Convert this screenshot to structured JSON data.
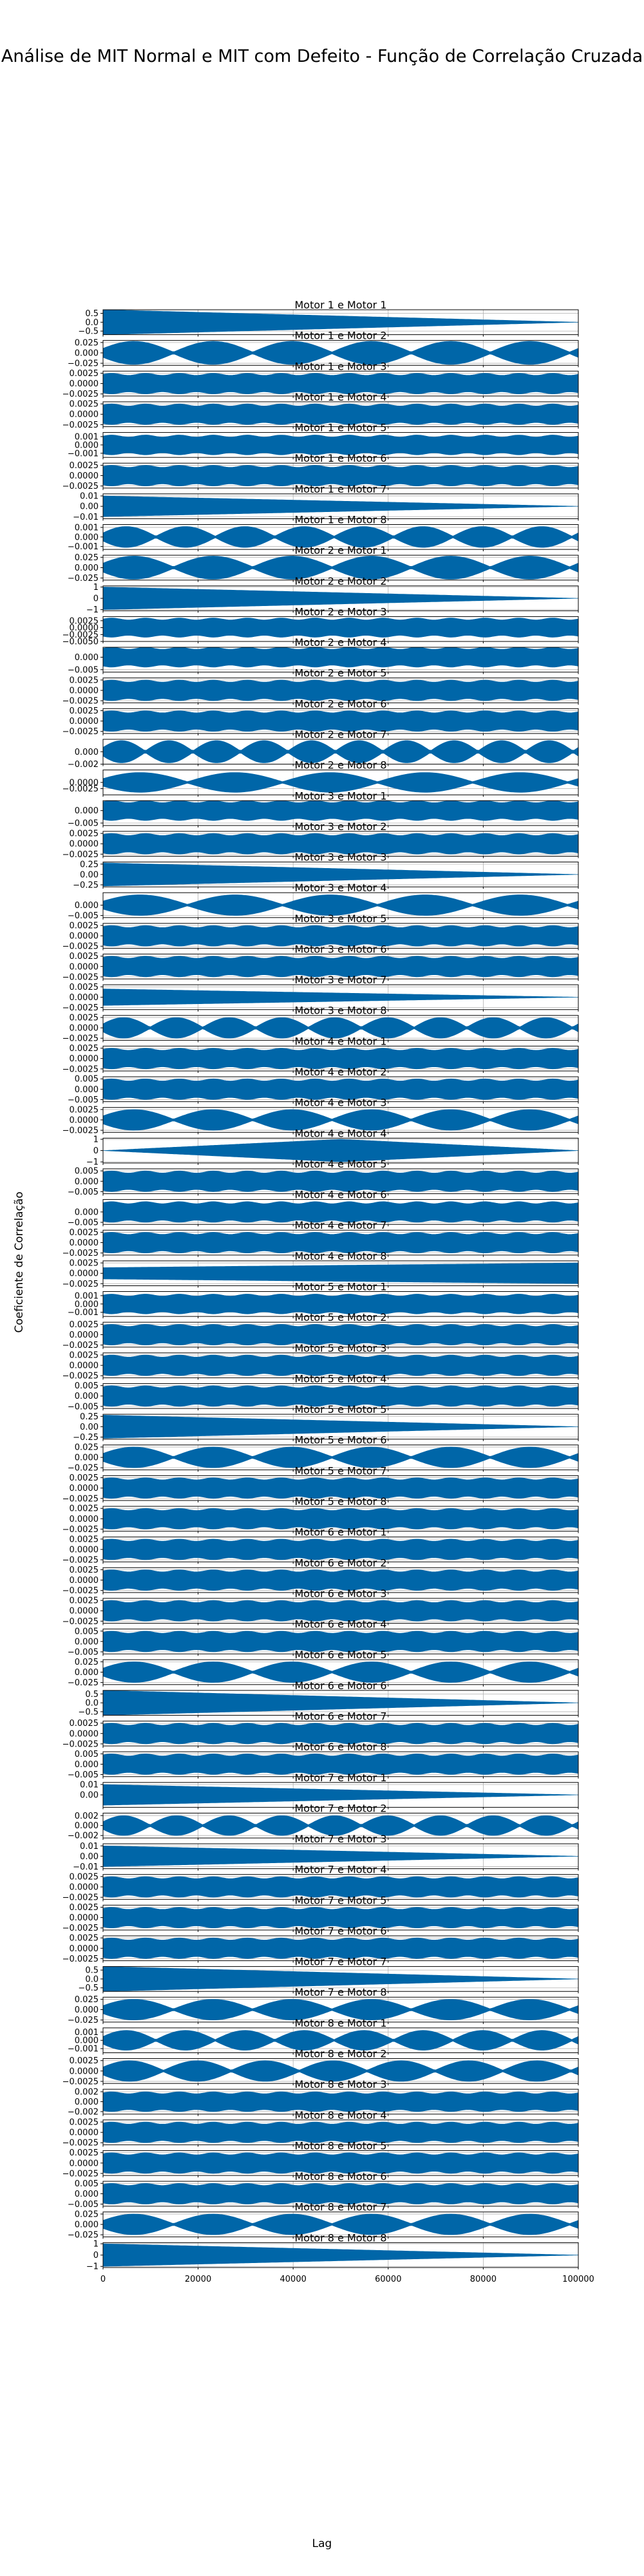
{
  "figure": {
    "title": "Análise de MIT Normal e MIT com Defeito - Função de Correlação Cruzada",
    "xlabel": "Lag",
    "ylabel": "Coeficiente de Correlação"
  },
  "chart_data": {
    "type": "line",
    "series_color": "#0066a8",
    "grid": true,
    "shared_x": true,
    "xlim": [
      0,
      100000
    ],
    "x_ticks": [
      "0",
      "20000",
      "40000",
      "60000",
      "80000",
      "100000"
    ],
    "panels": [
      {
        "title": "Motor 1 e Motor 1",
        "ylim": [
          -0.7,
          0.7
        ],
        "yticks": [
          "0.5",
          "0.0",
          "−0.5"
        ],
        "peak": 0.7,
        "envelope": "decay",
        "beats": 0
      },
      {
        "title": "Motor 1 e Motor 2",
        "ylim": [
          -0.03,
          0.03
        ],
        "yticks": [
          "0.025",
          "0.000",
          "−0.025"
        ],
        "peak": 0.028,
        "envelope": "beats",
        "beats": 6
      },
      {
        "title": "Motor 1 e Motor 3",
        "ylim": [
          -0.003,
          0.003
        ],
        "yticks": [
          "0.0025",
          "0.0000",
          "−0.0025"
        ],
        "peak": 0.0025,
        "envelope": "flat",
        "beats": 0
      },
      {
        "title": "Motor 1 e Motor 4",
        "ylim": [
          -0.003,
          0.003
        ],
        "yticks": [
          "0.0025",
          "0.0000",
          "−0.0025"
        ],
        "peak": 0.0025,
        "envelope": "flat",
        "beats": 0
      },
      {
        "title": "Motor 1 e Motor 5",
        "ylim": [
          -0.0015,
          0.0015
        ],
        "yticks": [
          "0.001",
          "0.000",
          "−0.001"
        ],
        "peak": 0.0012,
        "envelope": "flat",
        "beats": 0
      },
      {
        "title": "Motor 1 e Motor 6",
        "ylim": [
          -0.003,
          0.003
        ],
        "yticks": [
          "0.0025",
          "0.0000",
          "−0.0025"
        ],
        "peak": 0.0025,
        "envelope": "flat",
        "beats": 0
      },
      {
        "title": "Motor 1 e Motor 7",
        "ylim": [
          -0.012,
          0.012
        ],
        "yticks": [
          "0.01",
          "0.00",
          "−0.01"
        ],
        "peak": 0.01,
        "envelope": "decay",
        "beats": 0
      },
      {
        "title": "Motor 1 e Motor 8",
        "ylim": [
          -0.0013,
          0.0013
        ],
        "yticks": [
          "0.001",
          "0.000",
          "−0.001"
        ],
        "peak": 0.0011,
        "envelope": "beats",
        "beats": 8
      },
      {
        "title": "Motor 2 e Motor 1",
        "ylim": [
          -0.03,
          0.03
        ],
        "yticks": [
          "0.025",
          "0.000",
          "−0.025"
        ],
        "peak": 0.028,
        "envelope": "beats",
        "beats": 6
      },
      {
        "title": "Motor 2 e Motor 2",
        "ylim": [
          -1.1,
          1.1
        ],
        "yticks": [
          "1",
          "0",
          "−1"
        ],
        "peak": 1.0,
        "envelope": "decay",
        "beats": 0
      },
      {
        "title": "Motor 2 e Motor 3",
        "ylim": [
          -0.005,
          0.004
        ],
        "yticks": [
          "0.0025",
          "0.0000",
          "−0.0025",
          "−0.0050"
        ],
        "peak": 0.0035,
        "envelope": "flat",
        "beats": 0
      },
      {
        "title": "Motor 2 e Motor 4",
        "ylim": [
          -0.006,
          0.004
        ],
        "yticks": [
          "0.000",
          "−0.005"
        ],
        "peak": 0.004,
        "envelope": "flat",
        "beats": 0
      },
      {
        "title": "Motor 2 e Motor 5",
        "ylim": [
          -0.003,
          0.003
        ],
        "yticks": [
          "0.0025",
          "0.0000",
          "−0.0025"
        ],
        "peak": 0.0025,
        "envelope": "flat",
        "beats": 0
      },
      {
        "title": "Motor 2 e Motor 6",
        "ylim": [
          -0.003,
          0.003
        ],
        "yticks": [
          "0.0025",
          "0.0000",
          "−0.0025"
        ],
        "peak": 0.0025,
        "envelope": "flat",
        "beats": 0
      },
      {
        "title": "Motor 2 e Motor 7",
        "ylim": [
          -0.002,
          0.002
        ],
        "yticks": [
          "0.000",
          "−0.002"
        ],
        "peak": 0.0018,
        "envelope": "beats",
        "beats": 10
      },
      {
        "title": "Motor 2 e Motor 8",
        "ylim": [
          -0.005,
          0.005
        ],
        "yticks": [
          "0.0000",
          "−0.0025"
        ],
        "peak": 0.004,
        "envelope": "beats",
        "beats": 5
      },
      {
        "title": "Motor 3 e Motor 1",
        "ylim": [
          -0.006,
          0.004
        ],
        "yticks": [
          "0.000",
          "−0.005"
        ],
        "peak": 0.004,
        "envelope": "flat",
        "beats": 0
      },
      {
        "title": "Motor 3 e Motor 2",
        "ylim": [
          -0.003,
          0.003
        ],
        "yticks": [
          "0.0025",
          "0.0000",
          "−0.0025"
        ],
        "peak": 0.0025,
        "envelope": "flat",
        "beats": 0
      },
      {
        "title": "Motor 3 e Motor 3",
        "ylim": [
          -0.3,
          0.3
        ],
        "yticks": [
          "0.25",
          "0.00",
          "−0.25"
        ],
        "peak": 0.28,
        "envelope": "decay",
        "beats": 0
      },
      {
        "title": "Motor 3 e Motor 4",
        "ylim": [
          -0.006,
          0.006
        ],
        "yticks": [
          "0.000",
          "−0.005"
        ],
        "peak": 0.005,
        "envelope": "beats",
        "beats": 5
      },
      {
        "title": "Motor 3 e Motor 5",
        "ylim": [
          -0.003,
          0.003
        ],
        "yticks": [
          "0.0025",
          "0.0000",
          "−0.0025"
        ],
        "peak": 0.0025,
        "envelope": "flat",
        "beats": 0
      },
      {
        "title": "Motor 3 e Motor 6",
        "ylim": [
          -0.003,
          0.003
        ],
        "yticks": [
          "0.0025",
          "0.0000",
          "−0.0025"
        ],
        "peak": 0.0025,
        "envelope": "flat",
        "beats": 0
      },
      {
        "title": "Motor 3 e Motor 7",
        "ylim": [
          -0.003,
          0.003
        ],
        "yticks": [
          "0.0025",
          "0.0000",
          "−0.0025"
        ],
        "peak": 0.002,
        "envelope": "decay",
        "beats": 0
      },
      {
        "title": "Motor 3 e Motor 8",
        "ylim": [
          -0.003,
          0.003
        ],
        "yticks": [
          "0.0025",
          "0.0000",
          "−0.0025"
        ],
        "peak": 0.0025,
        "envelope": "beats",
        "beats": 9
      },
      {
        "title": "Motor 4 e Motor 1",
        "ylim": [
          -0.003,
          0.003
        ],
        "yticks": [
          "0.0025",
          "0.0000",
          "−0.0025"
        ],
        "peak": 0.0025,
        "envelope": "flat",
        "beats": 0
      },
      {
        "title": "Motor 4 e Motor 2",
        "ylim": [
          -0.006,
          0.006
        ],
        "yticks": [
          "0.005",
          "0.000",
          "−0.005"
        ],
        "peak": 0.005,
        "envelope": "flat",
        "beats": 0
      },
      {
        "title": "Motor 4 e Motor 3",
        "ylim": [
          -0.003,
          0.003
        ],
        "yticks": [
          "0.0025",
          "0.0000",
          "−0.0025"
        ],
        "peak": 0.0025,
        "envelope": "beats",
        "beats": 6
      },
      {
        "title": "Motor 4 e Motor 4",
        "ylim": [
          -1.1,
          1.1
        ],
        "yticks": [
          "1",
          "0",
          "−1"
        ],
        "peak": 1.0,
        "envelope": "diamond",
        "beats": 0
      },
      {
        "title": "Motor 4 e Motor 5",
        "ylim": [
          -0.006,
          0.006
        ],
        "yticks": [
          "0.005",
          "0.000",
          "−0.005"
        ],
        "peak": 0.005,
        "envelope": "flat",
        "beats": 0
      },
      {
        "title": "Motor 4 e Motor 6",
        "ylim": [
          -0.006,
          0.006
        ],
        "yticks": [
          "0.000",
          "−0.005"
        ],
        "peak": 0.005,
        "envelope": "flat",
        "beats": 0
      },
      {
        "title": "Motor 4 e Motor 7",
        "ylim": [
          -0.003,
          0.003
        ],
        "yticks": [
          "0.0025",
          "0.0000",
          "−0.0025"
        ],
        "peak": 0.0025,
        "envelope": "flat",
        "beats": 0
      },
      {
        "title": "Motor 4 e Motor 8",
        "ylim": [
          -0.003,
          0.003
        ],
        "yticks": [
          "0.0025",
          "0.0000",
          "−0.0025"
        ],
        "peak": 0.0025,
        "envelope": "grow",
        "beats": 0
      },
      {
        "title": "Motor 5 e Motor 1",
        "ylim": [
          -0.0015,
          0.0015
        ],
        "yticks": [
          "0.001",
          "0.000",
          "−0.001"
        ],
        "peak": 0.0012,
        "envelope": "flat",
        "beats": 0
      },
      {
        "title": "Motor 5 e Motor 2",
        "ylim": [
          -0.003,
          0.003
        ],
        "yticks": [
          "0.0025",
          "0.0000",
          "−0.0025"
        ],
        "peak": 0.0025,
        "envelope": "flat",
        "beats": 0
      },
      {
        "title": "Motor 5 e Motor 3",
        "ylim": [
          -0.003,
          0.003
        ],
        "yticks": [
          "0.0025",
          "0.0000",
          "−0.0025"
        ],
        "peak": 0.0025,
        "envelope": "flat",
        "beats": 0
      },
      {
        "title": "Motor 5 e Motor 4",
        "ylim": [
          -0.006,
          0.006
        ],
        "yticks": [
          "0.005",
          "0.000",
          "−0.005"
        ],
        "peak": 0.005,
        "envelope": "flat",
        "beats": 0
      },
      {
        "title": "Motor 5 e Motor 5",
        "ylim": [
          -0.3,
          0.3
        ],
        "yticks": [
          "0.25",
          "0.00",
          "−0.25"
        ],
        "peak": 0.28,
        "envelope": "decay",
        "beats": 0
      },
      {
        "title": "Motor 5 e Motor 6",
        "ylim": [
          -0.03,
          0.03
        ],
        "yticks": [
          "0.025",
          "0.000",
          "−0.025"
        ],
        "peak": 0.025,
        "envelope": "beats",
        "beats": 6
      },
      {
        "title": "Motor 5 e Motor 7",
        "ylim": [
          -0.003,
          0.003
        ],
        "yticks": [
          "0.0025",
          "0.0000",
          "−0.0025"
        ],
        "peak": 0.0025,
        "envelope": "flat",
        "beats": 0
      },
      {
        "title": "Motor 5 e Motor 8",
        "ylim": [
          -0.003,
          0.003
        ],
        "yticks": [
          "0.0025",
          "0.0000",
          "−0.0025"
        ],
        "peak": 0.0025,
        "envelope": "flat",
        "beats": 0
      },
      {
        "title": "Motor 6 e Motor 1",
        "ylim": [
          -0.003,
          0.003
        ],
        "yticks": [
          "0.0025",
          "0.0000",
          "−0.0025"
        ],
        "peak": 0.0025,
        "envelope": "flat",
        "beats": 0
      },
      {
        "title": "Motor 6 e Motor 2",
        "ylim": [
          -0.003,
          0.003
        ],
        "yticks": [
          "0.0025",
          "0.0000",
          "−0.0025"
        ],
        "peak": 0.0025,
        "envelope": "flat",
        "beats": 0
      },
      {
        "title": "Motor 6 e Motor 3",
        "ylim": [
          -0.003,
          0.003
        ],
        "yticks": [
          "0.0025",
          "0.0000",
          "−0.0025"
        ],
        "peak": 0.0025,
        "envelope": "flat",
        "beats": 0
      },
      {
        "title": "Motor 6 e Motor 4",
        "ylim": [
          -0.006,
          0.006
        ],
        "yticks": [
          "0.005",
          "0.000",
          "−0.005"
        ],
        "peak": 0.005,
        "envelope": "flat",
        "beats": 0
      },
      {
        "title": "Motor 6 e Motor 5",
        "ylim": [
          -0.03,
          0.03
        ],
        "yticks": [
          "0.025",
          "0.000",
          "−0.025"
        ],
        "peak": 0.025,
        "envelope": "beats",
        "beats": 6
      },
      {
        "title": "Motor 6 e Motor 6",
        "ylim": [
          -0.7,
          0.7
        ],
        "yticks": [
          "0.5",
          "0.0",
          "−0.5"
        ],
        "peak": 0.7,
        "envelope": "decay",
        "beats": 0
      },
      {
        "title": "Motor 6 e Motor 7",
        "ylim": [
          -0.003,
          0.003
        ],
        "yticks": [
          "0.0025",
          "0.0000",
          "−0.0025"
        ],
        "peak": 0.0025,
        "envelope": "flat",
        "beats": 0
      },
      {
        "title": "Motor 6 e Motor 8",
        "ylim": [
          -0.006,
          0.006
        ],
        "yticks": [
          "0.005",
          "0.000",
          "−0.005"
        ],
        "peak": 0.005,
        "envelope": "flat",
        "beats": 0
      },
      {
        "title": "Motor 7 e Motor 1",
        "ylim": [
          -0.012,
          0.012
        ],
        "yticks": [
          "0.01",
          "0.00"
        ],
        "peak": 0.01,
        "envelope": "decay",
        "beats": 0
      },
      {
        "title": "Motor 7 e Motor 2",
        "ylim": [
          -0.0025,
          0.0025
        ],
        "yticks": [
          "0.002",
          "0.000",
          "−0.002"
        ],
        "peak": 0.002,
        "envelope": "beats",
        "beats": 9
      },
      {
        "title": "Motor 7 e Motor 3",
        "ylim": [
          -0.012,
          0.012
        ],
        "yticks": [
          "0.01",
          "0.00",
          "−0.01"
        ],
        "peak": 0.01,
        "envelope": "decay",
        "beats": 0
      },
      {
        "title": "Motor 7 e Motor 4",
        "ylim": [
          -0.003,
          0.003
        ],
        "yticks": [
          "0.0025",
          "0.0000",
          "−0.0025"
        ],
        "peak": 0.0025,
        "envelope": "flat",
        "beats": 0
      },
      {
        "title": "Motor 7 e Motor 5",
        "ylim": [
          -0.003,
          0.003
        ],
        "yticks": [
          "0.0025",
          "0.0000",
          "−0.0025"
        ],
        "peak": 0.0025,
        "envelope": "flat",
        "beats": 0
      },
      {
        "title": "Motor 7 e Motor 6",
        "ylim": [
          -0.003,
          0.003
        ],
        "yticks": [
          "0.0025",
          "0.0000",
          "−0.0025"
        ],
        "peak": 0.0025,
        "envelope": "flat",
        "beats": 0
      },
      {
        "title": "Motor 7 e Motor 7",
        "ylim": [
          -0.7,
          0.7
        ],
        "yticks": [
          "0.5",
          "0.0",
          "−0.5"
        ],
        "peak": 0.7,
        "envelope": "decay",
        "beats": 0
      },
      {
        "title": "Motor 7 e Motor 8",
        "ylim": [
          -0.03,
          0.03
        ],
        "yticks": [
          "0.025",
          "0.000",
          "−0.025"
        ],
        "peak": 0.025,
        "envelope": "beats",
        "beats": 6
      },
      {
        "title": "Motor 8 e Motor 1",
        "ylim": [
          -0.0015,
          0.0015
        ],
        "yticks": [
          "0.001",
          "0.000",
          "−0.001"
        ],
        "peak": 0.0012,
        "envelope": "beats",
        "beats": 8
      },
      {
        "title": "Motor 8 e Motor 2",
        "ylim": [
          -0.003,
          0.003
        ],
        "yticks": [
          "0.0025",
          "0.0000",
          "−0.0025"
        ],
        "peak": 0.0025,
        "envelope": "beats",
        "beats": 7
      },
      {
        "title": "Motor 8 e Motor 3",
        "ylim": [
          -0.0025,
          0.0025
        ],
        "yticks": [
          "0.002",
          "0.000",
          "−0.002"
        ],
        "peak": 0.002,
        "envelope": "flat",
        "beats": 0
      },
      {
        "title": "Motor 8 e Motor 4",
        "ylim": [
          -0.003,
          0.003
        ],
        "yticks": [
          "0.0025",
          "0.0000",
          "−0.0025"
        ],
        "peak": 0.0025,
        "envelope": "flat",
        "beats": 0
      },
      {
        "title": "Motor 8 e Motor 5",
        "ylim": [
          -0.003,
          0.003
        ],
        "yticks": [
          "0.0025",
          "0.0000",
          "−0.0025"
        ],
        "peak": 0.0025,
        "envelope": "flat",
        "beats": 0
      },
      {
        "title": "Motor 8 e Motor 6",
        "ylim": [
          -0.006,
          0.006
        ],
        "yticks": [
          "0.005",
          "0.000",
          "−0.005"
        ],
        "peak": 0.005,
        "envelope": "flat",
        "beats": 0
      },
      {
        "title": "Motor 8 e Motor 7",
        "ylim": [
          -0.03,
          0.03
        ],
        "yticks": [
          "0.025",
          "0.000",
          "−0.025"
        ],
        "peak": 0.025,
        "envelope": "beats",
        "beats": 6
      },
      {
        "title": "Motor 8 e Motor 8",
        "ylim": [
          -1.1,
          1.1
        ],
        "yticks": [
          "1",
          "0",
          "−1"
        ],
        "peak": 1.0,
        "envelope": "decay",
        "beats": 0
      }
    ]
  }
}
